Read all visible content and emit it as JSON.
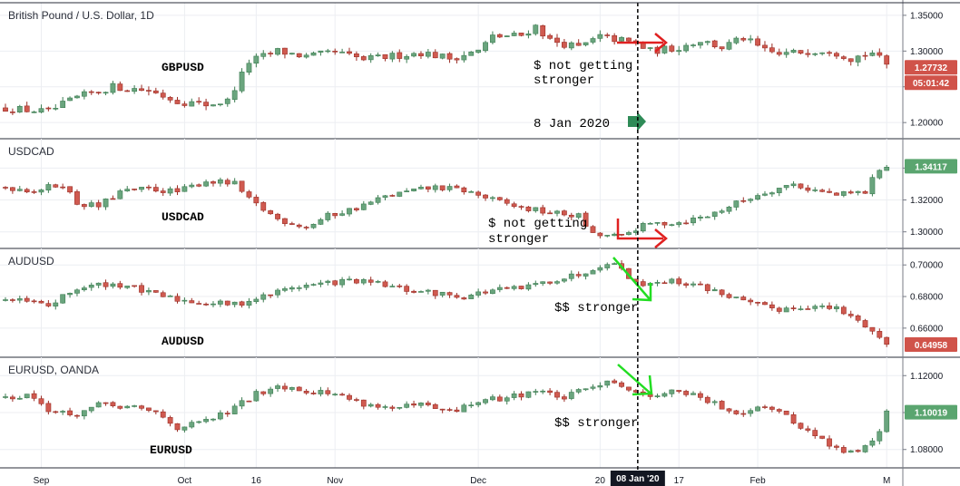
{
  "colors": {
    "up": "#6aa57e",
    "down": "#d05a50",
    "up_border": "#3d7d52",
    "down_border": "#9b2e26",
    "grid": "#eceef2",
    "axis": "#787b86",
    "green_arrow": "#2e8b57",
    "red_arrow": "#e02020",
    "bright_green": "#22dd22",
    "badge_red": "#d0534a",
    "badge_green": "#5aa56f",
    "date_badge": "#131722"
  },
  "x_axis": {
    "labels": [
      {
        "text": "Sep",
        "index": 5
      },
      {
        "text": "Oct",
        "index": 25
      },
      {
        "text": "16",
        "index": 35
      },
      {
        "text": "Nov",
        "index": 46
      },
      {
        "text": "Dec",
        "index": 66
      },
      {
        "text": "20",
        "index": 83
      },
      {
        "text": "17",
        "index": 94
      },
      {
        "text": "Feb",
        "index": 105
      },
      {
        "text": "M",
        "index": 123
      }
    ],
    "crosshair_label": "08 Jan '20",
    "crosshair_index": 88
  },
  "chart_data": [
    {
      "type": "candlestick",
      "title": "British Pound / U.S. Dollar, 1D",
      "pair_label": "GBPUSD",
      "ylim": [
        1.185,
        1.36
      ],
      "yticks": [
        "1.35000",
        "1.30000",
        "1.25000",
        "1.20000"
      ],
      "last_price": "1.27732",
      "countdown": "05:01:42",
      "annotations": [
        {
          "text": "$ not getting",
          "line": 1
        },
        {
          "text": "stronger",
          "line": 2
        },
        {
          "text": "8 Jan 2020",
          "line": 3
        }
      ],
      "anchors": [
        [
          0,
          1.22
        ],
        [
          6,
          1.215
        ],
        [
          10,
          1.235
        ],
        [
          15,
          1.25
        ],
        [
          20,
          1.245
        ],
        [
          24,
          1.23
        ],
        [
          28,
          1.225
        ],
        [
          31,
          1.23
        ],
        [
          34,
          1.285
        ],
        [
          38,
          1.3
        ],
        [
          42,
          1.292
        ],
        [
          46,
          1.298
        ],
        [
          50,
          1.288
        ],
        [
          54,
          1.293
        ],
        [
          58,
          1.298
        ],
        [
          62,
          1.29
        ],
        [
          66,
          1.3
        ],
        [
          68,
          1.32
        ],
        [
          72,
          1.322
        ],
        [
          74,
          1.335
        ],
        [
          76,
          1.315
        ],
        [
          80,
          1.305
        ],
        [
          83,
          1.32
        ],
        [
          86,
          1.315
        ],
        [
          88,
          1.31
        ],
        [
          90,
          1.3
        ],
        [
          94,
          1.305
        ],
        [
          97,
          1.315
        ],
        [
          100,
          1.305
        ],
        [
          103,
          1.318
        ],
        [
          106,
          1.3
        ],
        [
          108,
          1.295
        ],
        [
          112,
          1.3
        ],
        [
          115,
          1.302
        ],
        [
          118,
          1.29
        ],
        [
          121,
          1.298
        ],
        [
          123,
          1.28
        ]
      ]
    },
    {
      "type": "candlestick",
      "title": "USDCAD",
      "pair_label": "USDCAD",
      "ylim": [
        1.293,
        1.355
      ],
      "yticks": [
        "1.34000",
        "1.32000",
        "1.30000"
      ],
      "last_price": "1.34117",
      "annotations": [
        {
          "text": "$ not getting",
          "line": 1
        },
        {
          "text": "stronger",
          "line": 2
        }
      ],
      "anchors": [
        [
          0,
          1.328
        ],
        [
          4,
          1.326
        ],
        [
          8,
          1.33
        ],
        [
          10,
          1.318
        ],
        [
          13,
          1.316
        ],
        [
          16,
          1.325
        ],
        [
          20,
          1.327
        ],
        [
          24,
          1.325
        ],
        [
          28,
          1.332
        ],
        [
          32,
          1.33
        ],
        [
          34,
          1.32
        ],
        [
          38,
          1.308
        ],
        [
          42,
          1.303
        ],
        [
          45,
          1.31
        ],
        [
          49,
          1.315
        ],
        [
          53,
          1.322
        ],
        [
          56,
          1.325
        ],
        [
          60,
          1.328
        ],
        [
          64,
          1.326
        ],
        [
          68,
          1.32
        ],
        [
          72,
          1.315
        ],
        [
          76,
          1.312
        ],
        [
          80,
          1.31
        ],
        [
          82,
          1.298
        ],
        [
          86,
          1.297
        ],
        [
          88,
          1.302
        ],
        [
          90,
          1.305
        ],
        [
          94,
          1.306
        ],
        [
          98,
          1.31
        ],
        [
          102,
          1.318
        ],
        [
          106,
          1.325
        ],
        [
          110,
          1.33
        ],
        [
          112,
          1.327
        ],
        [
          116,
          1.323
        ],
        [
          120,
          1.325
        ],
        [
          122,
          1.34
        ],
        [
          123,
          1.341
        ]
      ]
    },
    {
      "type": "candlestick",
      "title": "AUDUSD",
      "pair_label": "AUDUSD",
      "ylim": [
        0.645,
        0.707
      ],
      "yticks": [
        "0.70000",
        "0.68000",
        "0.66000"
      ],
      "last_price": "0.64958",
      "annotations": [
        {
          "text": "$$ stronger",
          "line": 1
        }
      ],
      "anchors": [
        [
          0,
          0.678
        ],
        [
          4,
          0.676
        ],
        [
          6,
          0.674
        ],
        [
          10,
          0.685
        ],
        [
          14,
          0.688
        ],
        [
          17,
          0.687
        ],
        [
          20,
          0.682
        ],
        [
          24,
          0.678
        ],
        [
          28,
          0.676
        ],
        [
          32,
          0.675
        ],
        [
          36,
          0.68
        ],
        [
          40,
          0.686
        ],
        [
          44,
          0.688
        ],
        [
          48,
          0.69
        ],
        [
          52,
          0.688
        ],
        [
          56,
          0.684
        ],
        [
          60,
          0.682
        ],
        [
          64,
          0.68
        ],
        [
          68,
          0.684
        ],
        [
          72,
          0.685
        ],
        [
          76,
          0.69
        ],
        [
          80,
          0.694
        ],
        [
          84,
          0.702
        ],
        [
          86,
          0.698
        ],
        [
          88,
          0.688
        ],
        [
          92,
          0.69
        ],
        [
          96,
          0.688
        ],
        [
          100,
          0.682
        ],
        [
          104,
          0.675
        ],
        [
          108,
          0.672
        ],
        [
          112,
          0.674
        ],
        [
          116,
          0.672
        ],
        [
          120,
          0.662
        ],
        [
          123,
          0.65
        ]
      ]
    },
    {
      "type": "candlestick",
      "title": "EURUSD, OANDA",
      "pair_label": "EURUSD",
      "ylim": [
        1.073,
        1.127
      ],
      "yticks": [
        "1.12000",
        "1.10000",
        "1.08000"
      ],
      "last_price": "1.10019",
      "annotations": [
        {
          "text": "$$ stronger",
          "line": 1
        }
      ],
      "anchors": [
        [
          0,
          1.108
        ],
        [
          3,
          1.11
        ],
        [
          6,
          1.102
        ],
        [
          9,
          1.098
        ],
        [
          13,
          1.104
        ],
        [
          17,
          1.103
        ],
        [
          21,
          1.1
        ],
        [
          24,
          1.092
        ],
        [
          27,
          1.094
        ],
        [
          31,
          1.1
        ],
        [
          35,
          1.11
        ],
        [
          38,
          1.115
        ],
        [
          42,
          1.112
        ],
        [
          46,
          1.11
        ],
        [
          50,
          1.105
        ],
        [
          54,
          1.102
        ],
        [
          58,
          1.104
        ],
        [
          62,
          1.1
        ],
        [
          66,
          1.106
        ],
        [
          70,
          1.108
        ],
        [
          74,
          1.112
        ],
        [
          78,
          1.108
        ],
        [
          82,
          1.114
        ],
        [
          84,
          1.118
        ],
        [
          86,
          1.115
        ],
        [
          88,
          1.11
        ],
        [
          92,
          1.11
        ],
        [
          94,
          1.112
        ],
        [
          98,
          1.106
        ],
        [
          102,
          1.1
        ],
        [
          106,
          1.104
        ],
        [
          108,
          1.1
        ],
        [
          112,
          1.09
        ],
        [
          116,
          1.08
        ],
        [
          119,
          1.078
        ],
        [
          122,
          1.09
        ],
        [
          123,
          1.1
        ]
      ]
    }
  ]
}
